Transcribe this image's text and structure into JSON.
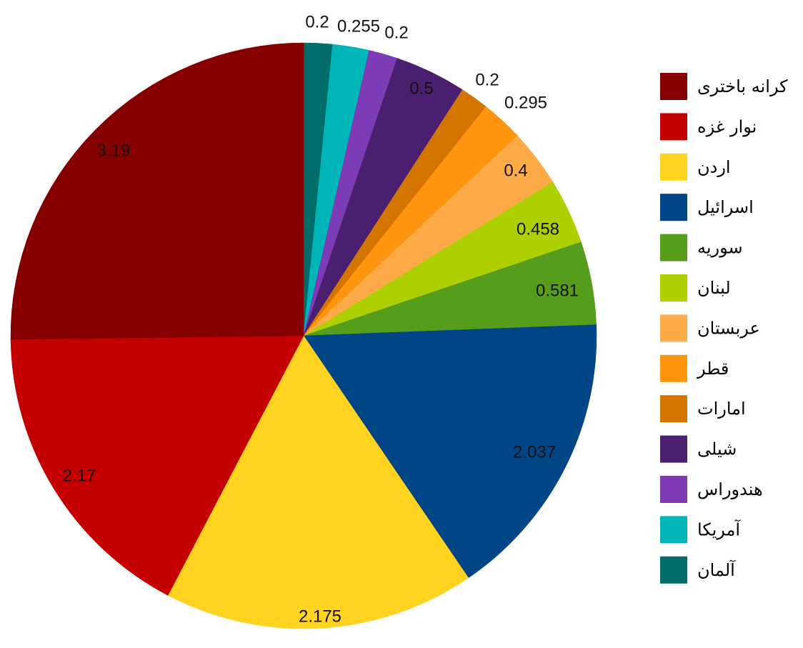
{
  "chart_data": {
    "type": "pie",
    "title": "",
    "legend_position": "right",
    "start": "top, clockwise",
    "slices": [
      {
        "label": "آلمان",
        "value": 0.2,
        "value_label": "0.2",
        "color": "#006d6a"
      },
      {
        "label": "آمریکا",
        "value": 0.255,
        "value_label": "0.255",
        "color": "#00b5b8"
      },
      {
        "label": "هندوراس",
        "value": 0.2,
        "value_label": "0.2",
        "color": "#7d3cb5"
      },
      {
        "label": "شیلی",
        "value": 0.5,
        "value_label": "0.5",
        "color": "#4b1f6f"
      },
      {
        "label": "امارات",
        "value": 0.2,
        "value_label": "0.2",
        "color": "#d47500"
      },
      {
        "label": "قطر",
        "value": 0.295,
        "value_label": "0.295",
        "color": "#ff950e"
      },
      {
        "label": "عربستان",
        "value": 0.4,
        "value_label": "0.4",
        "color": "#ffaa48"
      },
      {
        "label": "لبنان",
        "value": 0.458,
        "value_label": "0.458",
        "color": "#aecf00"
      },
      {
        "label": "سوریه",
        "value": 0.581,
        "value_label": "0.581",
        "color": "#579d1c"
      },
      {
        "label": "اسرائیل",
        "value": 2.037,
        "value_label": "2.037",
        "color": "#004586"
      },
      {
        "label": "اردن",
        "value": 2.175,
        "value_label": "2.175",
        "color": "#ffd320"
      },
      {
        "label": "نوار غزه",
        "value": 2.17,
        "value_label": "2.17",
        "color": "#c50000"
      },
      {
        "label": "کرانه باختری",
        "value": 3.19,
        "value_label": "3.19",
        "color": "#870000"
      }
    ],
    "legend_order": [
      "کرانه باختری",
      "نوار غزه",
      "اردن",
      "اسرائیل",
      "سوریه",
      "لبنان",
      "عربستان",
      "قطر",
      "امارات",
      "شیلی",
      "هندوراس",
      "آمریکا",
      "آلمان"
    ]
  }
}
